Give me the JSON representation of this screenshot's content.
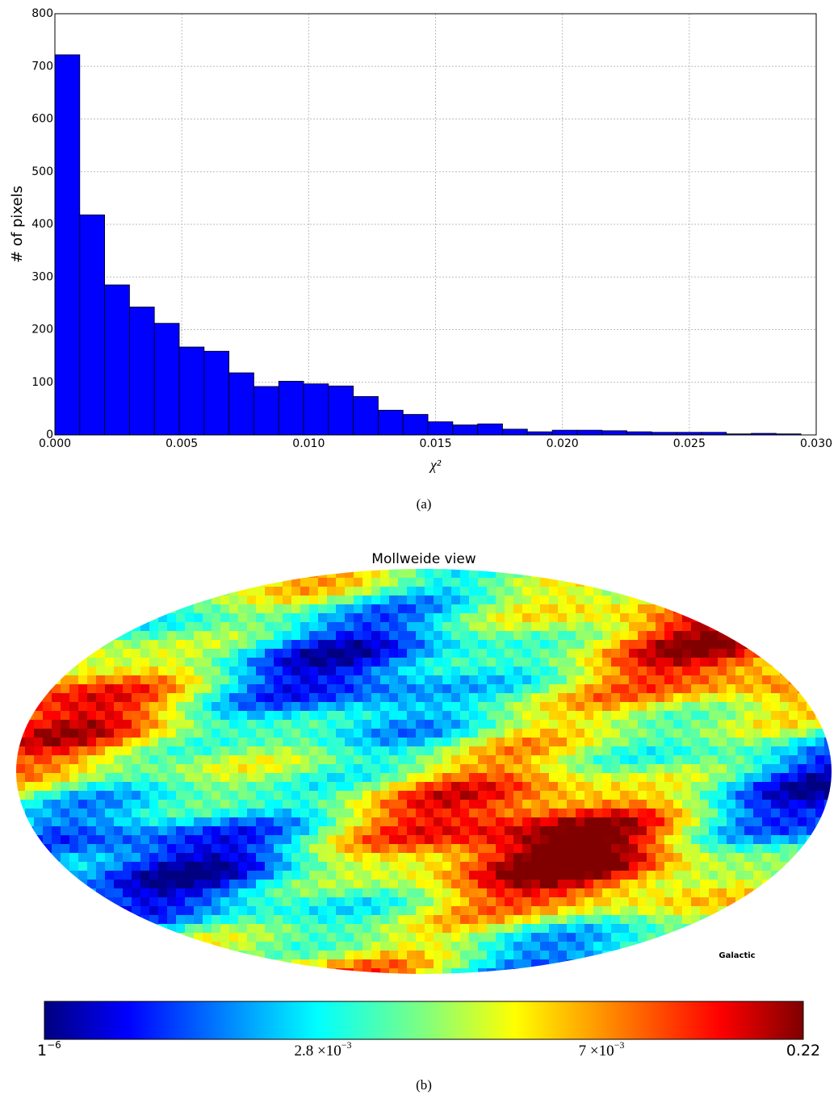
{
  "chart_data": [
    {
      "type": "histogram",
      "ylabel": "# of pixels",
      "xlabel": "χ²",
      "color": "#0000ff",
      "grid": true,
      "bins": [
        0,
        0.00098,
        0.00196,
        0.00294,
        0.00392,
        0.0049,
        0.00588,
        0.00686,
        0.00784,
        0.00882,
        0.0098,
        0.01078,
        0.01176,
        0.01274,
        0.01372,
        0.0147,
        0.01568,
        0.01666,
        0.01764,
        0.01862,
        0.0196,
        0.02058,
        0.02156,
        0.02254,
        0.02352,
        0.0245,
        0.02548,
        0.02646,
        0.02744,
        0.02842,
        0.0294
      ],
      "values": [
        722,
        418,
        285,
        243,
        212,
        167,
        159,
        118,
        92,
        102,
        97,
        93,
        73,
        47,
        39,
        25,
        19,
        21,
        11,
        6,
        9,
        9,
        8,
        6,
        5,
        5,
        5,
        2,
        3,
        2
      ],
      "xlim": [
        0,
        0.03
      ],
      "ylim": [
        0,
        800
      ],
      "xticks": [
        {
          "value": 0,
          "label": "0.000"
        },
        {
          "value": 0.005,
          "label": "0.005"
        },
        {
          "value": 0.01,
          "label": "0.010"
        },
        {
          "value": 0.015,
          "label": "0.015"
        },
        {
          "value": 0.02,
          "label": "0.020"
        },
        {
          "value": 0.025,
          "label": "0.025"
        },
        {
          "value": 0.03,
          "label": "0.030"
        }
      ],
      "yticks": [
        0,
        100,
        200,
        300,
        400,
        500,
        600,
        700,
        800
      ]
    },
    {
      "type": "map",
      "title": "Mollweide view",
      "coord_label": "Galactic",
      "colormap": "jet",
      "colorbar_labels": [
        {
          "mantissa": "1",
          "exponent": "−6"
        },
        {
          "mantissa": "2.8 ×10",
          "exponent": "−3"
        },
        {
          "mantissa": "7 ×10",
          "exponent": "−3"
        },
        {
          "mantissa": "0.22"
        }
      ]
    }
  ],
  "captions": [
    "(a)",
    "(b)"
  ]
}
